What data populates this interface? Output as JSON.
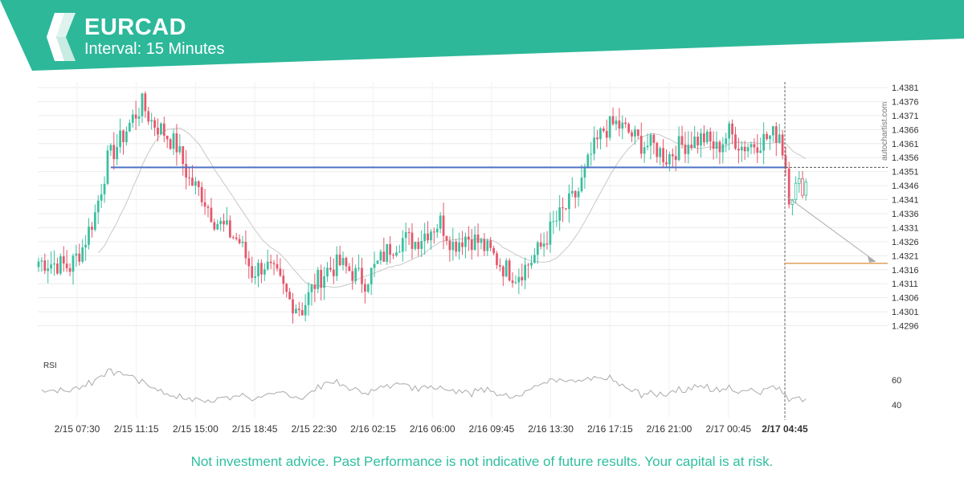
{
  "header": {
    "symbol": "EURCAD",
    "interval": "Interval: 15 Minutes"
  },
  "watermark": "autochartist.com",
  "footer": {
    "disclaimer": "Not investment advice. Past Performance is not indicative of future results. Your capital is at risk."
  },
  "colors": {
    "brand": "#2db89a",
    "up": "#3bbf9f",
    "down": "#e5576a",
    "support_line": "#4e73c4",
    "target_line": "#e1a05b",
    "ma": "#c8c8c8",
    "rsi": "#aaaaaa"
  },
  "chart_data": {
    "type": "candlestick",
    "title": "EURCAD",
    "interval": "15 Minutes",
    "ylim": [
      1.4291,
      1.4383
    ],
    "y_ticks": [
      "1.4381",
      "1.4376",
      "1.4371",
      "1.4366",
      "1.4361",
      "1.4356",
      "1.4351",
      "1.4346",
      "1.4341",
      "1.4336",
      "1.4331",
      "1.4326",
      "1.4321",
      "1.4316",
      "1.4311",
      "1.4306",
      "1.4301",
      "1.4296"
    ],
    "x_ticks": [
      "2/15 07:30",
      "2/15 11:15",
      "2/15 15:00",
      "2/15 18:45",
      "2/15 22:30",
      "2/16 02:15",
      "2/16 06:00",
      "2/16 09:45",
      "2/16 13:30",
      "2/16 17:15",
      "2/16 21:00",
      "2/17 00:45",
      "2/17 04:45"
    ],
    "highlighted_x_tick": "2/17 04:45",
    "grid": true,
    "candles_count": 245,
    "price_keypoints": [
      [
        0,
        1.4319
      ],
      [
        6,
        1.4318
      ],
      [
        10,
        1.4317
      ],
      [
        14,
        1.4324
      ],
      [
        18,
        1.4336
      ],
      [
        22,
        1.4355
      ],
      [
        26,
        1.4362
      ],
      [
        30,
        1.437
      ],
      [
        33,
        1.4375
      ],
      [
        36,
        1.4369
      ],
      [
        40,
        1.4365
      ],
      [
        44,
        1.436
      ],
      [
        48,
        1.4348
      ],
      [
        52,
        1.4343
      ],
      [
        56,
        1.4334
      ],
      [
        60,
        1.433
      ],
      [
        64,
        1.4326
      ],
      [
        68,
        1.4315
      ],
      [
        72,
        1.4318
      ],
      [
        76,
        1.4313
      ],
      [
        80,
        1.4305
      ],
      [
        84,
        1.4302
      ],
      [
        88,
        1.4311
      ],
      [
        92,
        1.4316
      ],
      [
        96,
        1.4318
      ],
      [
        100,
        1.4315
      ],
      [
        104,
        1.4312
      ],
      [
        108,
        1.4318
      ],
      [
        112,
        1.4324
      ],
      [
        116,
        1.4327
      ],
      [
        120,
        1.4326
      ],
      [
        124,
        1.433
      ],
      [
        128,
        1.4333
      ],
      [
        132,
        1.4325
      ],
      [
        136,
        1.4328
      ],
      [
        140,
        1.4326
      ],
      [
        144,
        1.4322
      ],
      [
        148,
        1.4317
      ],
      [
        152,
        1.4314
      ],
      [
        156,
        1.4318
      ],
      [
        160,
        1.4324
      ],
      [
        164,
        1.4332
      ],
      [
        168,
        1.4338
      ],
      [
        172,
        1.4344
      ],
      [
        176,
        1.4357
      ],
      [
        180,
        1.4366
      ],
      [
        184,
        1.4368
      ],
      [
        188,
        1.4365
      ],
      [
        192,
        1.4361
      ],
      [
        196,
        1.436
      ],
      [
        200,
        1.4356
      ],
      [
        204,
        1.436
      ],
      [
        208,
        1.4362
      ],
      [
        212,
        1.4363
      ],
      [
        216,
        1.4359
      ],
      [
        220,
        1.4365
      ],
      [
        224,
        1.436
      ],
      [
        228,
        1.4361
      ],
      [
        232,
        1.4363
      ],
      [
        236,
        1.4365
      ],
      [
        238,
        1.4353
      ],
      [
        239,
        1.4343
      ],
      [
        241,
        1.4345
      ],
      [
        244,
        1.4347
      ]
    ],
    "support_level": 1.43525,
    "support_from_index": 23,
    "projected_target": 1.43183,
    "projection_start": [
      238,
      1.4342
    ],
    "series": [
      {
        "name": "RSI",
        "y_ticks": [
          "60",
          "40"
        ]
      }
    ]
  },
  "rsi_label": "RSI"
}
